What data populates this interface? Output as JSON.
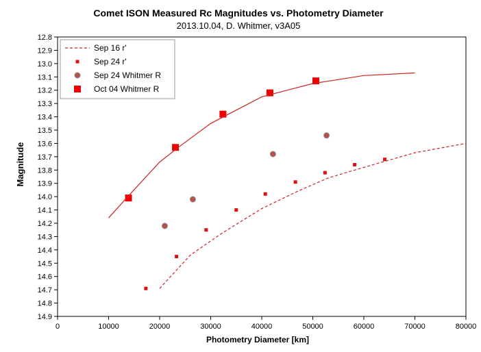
{
  "chart_data": {
    "type": "scatter",
    "title": "Comet ISON Measured Rc Magnitudes  vs. Photometry Diameter",
    "subtitle": "2013.10.04,  D. Whitmer, v3A05",
    "xlabel": "Photometry Diameter  [km]",
    "ylabel": "Magnitude",
    "xlim": [
      0,
      80000
    ],
    "ylim": [
      12.8,
      14.9
    ],
    "y_reversed": true,
    "x_ticks": [
      "0",
      "10000",
      "20000",
      "30000",
      "40000",
      "50000",
      "60000",
      "70000",
      "80000"
    ],
    "y_ticks": [
      "12.8",
      "12.9",
      "13.0",
      "13.1",
      "13.2",
      "13.3",
      "13.4",
      "13.5",
      "13.6",
      "13.7",
      "13.8",
      "13.9",
      "14.0",
      "14.1",
      "14.2",
      "14.3",
      "14.4",
      "14.5",
      "14.6",
      "14.7",
      "14.8",
      "14.9"
    ],
    "grid": false,
    "legend_position": "top-left",
    "series": [
      {
        "name": "Sep 16 r'",
        "style": "dashed-line",
        "color": "#cc2222",
        "x": [
          20000,
          26000,
          32000,
          40000,
          47000,
          53000,
          60000,
          70000,
          80000
        ],
        "y": [
          14.69,
          14.44,
          14.28,
          14.09,
          13.96,
          13.86,
          13.78,
          13.67,
          13.6
        ]
      },
      {
        "name": "Sep 24 r'",
        "style": "small-square",
        "color": "#dd1111",
        "x": [
          17300,
          23300,
          29100,
          35000,
          40700,
          46600,
          52400,
          58200,
          64100
        ],
        "y": [
          14.69,
          14.45,
          14.25,
          14.1,
          13.98,
          13.89,
          13.82,
          13.76,
          13.72
        ]
      },
      {
        "name": "Sep 24 Whitmer R",
        "style": "circle",
        "color": "#b5524a",
        "x": [
          21000,
          26500,
          42200,
          52700
        ],
        "y": [
          14.22,
          14.02,
          13.68,
          13.54
        ]
      },
      {
        "name": "Oct 04 Whitmer R",
        "style": "large-square",
        "color": "#ee0000",
        "x": [
          13900,
          23100,
          32400,
          41600,
          50600
        ],
        "y": [
          14.01,
          13.63,
          13.38,
          13.22,
          13.13
        ]
      },
      {
        "name": "",
        "style": "solid-line",
        "color": "#cc2222",
        "x": [
          10000,
          14000,
          20000,
          24000,
          30000,
          34000,
          40000,
          45000,
          50000,
          55000,
          60000,
          70000
        ],
        "y": [
          14.16,
          13.99,
          13.74,
          13.62,
          13.45,
          13.37,
          13.25,
          13.2,
          13.15,
          13.12,
          13.09,
          13.07
        ]
      }
    ]
  }
}
